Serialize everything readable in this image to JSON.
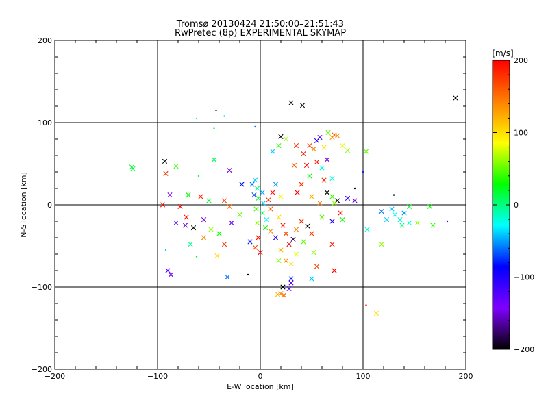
{
  "chart_data": {
    "type": "scatter",
    "title": "Tromsø 20130424 21:50:00–21:51:43",
    "subtitle": "RwPretec (8p) EXPERIMENTAL SKYMAP",
    "xlabel": "E-W location [km]",
    "ylabel": "N-S location [km]",
    "xlim": [
      -200,
      200
    ],
    "ylim": [
      -200,
      200
    ],
    "xticks": [
      -200,
      -100,
      0,
      100,
      200
    ],
    "yticks": [
      -200,
      -100,
      0,
      100,
      200
    ],
    "xtick_labels": [
      "−200",
      "−100",
      "0",
      "100",
      "200"
    ],
    "ytick_labels": [
      "−200",
      "−100",
      "0",
      "100",
      "200"
    ],
    "grid": true,
    "colorbar": {
      "label": "[m/s]",
      "range": [
        -200,
        200
      ],
      "ticks": [
        200,
        100,
        0,
        -100,
        -200
      ],
      "tick_labels": [
        "200",
        "100",
        "0",
        "−100",
        "−200"
      ],
      "colormap": [
        "#000000",
        "#7f00ff",
        "#0000ff",
        "#00ffff",
        "#00ff00",
        "#ffff00",
        "#ff8000",
        "#ff0000"
      ]
    },
    "points": [
      {
        "x": -125,
        "y": 46,
        "v": 20,
        "m": "x"
      },
      {
        "x": -124,
        "y": 44,
        "v": 15,
        "m": "x"
      },
      {
        "x": 190,
        "y": 130,
        "v": -200,
        "m": "x"
      },
      {
        "x": 30,
        "y": 124,
        "v": -200,
        "m": "x"
      },
      {
        "x": 41,
        "y": 121,
        "v": -200,
        "m": "x"
      },
      {
        "x": -43,
        "y": 115,
        "v": -200,
        "m": "."
      },
      {
        "x": 72,
        "y": 85,
        "v": 160,
        "m": "x"
      },
      {
        "x": 75,
        "y": 84,
        "v": 140,
        "m": "x"
      },
      {
        "x": 70,
        "y": 82,
        "v": 130,
        "m": "x"
      },
      {
        "x": 66,
        "y": 88,
        "v": 50,
        "m": "x"
      },
      {
        "x": 58,
        "y": 82,
        "v": -120,
        "m": "x"
      },
      {
        "x": 55,
        "y": 78,
        "v": -100,
        "m": "x"
      },
      {
        "x": 48,
        "y": 72,
        "v": 170,
        "m": "x"
      },
      {
        "x": 52,
        "y": 68,
        "v": 140,
        "m": "x"
      },
      {
        "x": 62,
        "y": 70,
        "v": 100,
        "m": "x"
      },
      {
        "x": 80,
        "y": 72,
        "v": 80,
        "m": "x"
      },
      {
        "x": 85,
        "y": 66,
        "v": 60,
        "m": "x"
      },
      {
        "x": 103,
        "y": 65,
        "v": 50,
        "m": "x"
      },
      {
        "x": 20,
        "y": 83,
        "v": -200,
        "m": "x"
      },
      {
        "x": 25,
        "y": 80,
        "v": 60,
        "m": "x"
      },
      {
        "x": 18,
        "y": 72,
        "v": 40,
        "m": "x"
      },
      {
        "x": 12,
        "y": 65,
        "v": -40,
        "m": "x"
      },
      {
        "x": 35,
        "y": 72,
        "v": 180,
        "m": "x"
      },
      {
        "x": 42,
        "y": 62,
        "v": 190,
        "m": "x"
      },
      {
        "x": 45,
        "y": 48,
        "v": 200,
        "m": "x"
      },
      {
        "x": 33,
        "y": 48,
        "v": 160,
        "m": "x"
      },
      {
        "x": -92,
        "y": 38,
        "v": 180,
        "m": "x"
      },
      {
        "x": -93,
        "y": 53,
        "v": -200,
        "m": "x"
      },
      {
        "x": -82,
        "y": 47,
        "v": 40,
        "m": "x"
      },
      {
        "x": -60,
        "y": 35,
        "v": 20,
        "m": "."
      },
      {
        "x": -45,
        "y": 55,
        "v": 10,
        "m": "x"
      },
      {
        "x": -30,
        "y": 42,
        "v": -150,
        "m": "x"
      },
      {
        "x": -18,
        "y": 25,
        "v": -80,
        "m": "x"
      },
      {
        "x": -88,
        "y": 12,
        "v": -140,
        "m": "x"
      },
      {
        "x": -95,
        "y": 0,
        "v": 190,
        "m": "x"
      },
      {
        "x": -78,
        "y": -2,
        "v": 200,
        "m": "x"
      },
      {
        "x": -70,
        "y": 12,
        "v": 30,
        "m": "x"
      },
      {
        "x": -58,
        "y": 10,
        "v": 180,
        "m": "x"
      },
      {
        "x": -50,
        "y": 5,
        "v": 20,
        "m": "x"
      },
      {
        "x": -35,
        "y": 5,
        "v": 170,
        "m": "x"
      },
      {
        "x": -30,
        "y": -2,
        "v": 150,
        "m": "x"
      },
      {
        "x": -72,
        "y": -15,
        "v": 190,
        "m": "x"
      },
      {
        "x": -82,
        "y": -22,
        "v": -120,
        "m": "x"
      },
      {
        "x": -73,
        "y": -25,
        "v": -150,
        "m": "x"
      },
      {
        "x": -65,
        "y": -28,
        "v": -200,
        "m": "x"
      },
      {
        "x": -55,
        "y": -18,
        "v": -150,
        "m": "x"
      },
      {
        "x": -48,
        "y": -30,
        "v": 60,
        "m": "x"
      },
      {
        "x": -40,
        "y": -35,
        "v": 30,
        "m": "x"
      },
      {
        "x": -28,
        "y": -22,
        "v": -130,
        "m": "x"
      },
      {
        "x": -20,
        "y": -12,
        "v": 50,
        "m": "x"
      },
      {
        "x": -68,
        "y": -48,
        "v": 0,
        "m": "x"
      },
      {
        "x": -55,
        "y": -40,
        "v": 140,
        "m": "x"
      },
      {
        "x": -42,
        "y": -62,
        "v": 100,
        "m": "x"
      },
      {
        "x": -35,
        "y": -48,
        "v": 180,
        "m": "x"
      },
      {
        "x": -90,
        "y": -80,
        "v": -130,
        "m": "x"
      },
      {
        "x": -87,
        "y": -85,
        "v": -130,
        "m": "x"
      },
      {
        "x": -32,
        "y": -88,
        "v": -60,
        "m": "x"
      },
      {
        "x": -10,
        "y": -45,
        "v": -80,
        "m": "x"
      },
      {
        "x": -5,
        "y": -52,
        "v": 170,
        "m": "x"
      },
      {
        "x": 0,
        "y": -58,
        "v": 200,
        "m": "x"
      },
      {
        "x": -2,
        "y": -40,
        "v": 190,
        "m": "x"
      },
      {
        "x": -5,
        "y": 30,
        "v": -40,
        "m": "x"
      },
      {
        "x": -8,
        "y": 25,
        "v": -60,
        "m": "x"
      },
      {
        "x": -3,
        "y": 20,
        "v": 0,
        "m": "x"
      },
      {
        "x": -6,
        "y": 12,
        "v": -70,
        "m": "x"
      },
      {
        "x": 2,
        "y": 15,
        "v": -50,
        "m": "x"
      },
      {
        "x": -2,
        "y": 8,
        "v": 20,
        "m": "x"
      },
      {
        "x": 3,
        "y": 2,
        "v": -40,
        "m": "x"
      },
      {
        "x": -4,
        "y": -5,
        "v": 40,
        "m": "x"
      },
      {
        "x": 2,
        "y": -10,
        "v": 10,
        "m": "x"
      },
      {
        "x": 6,
        "y": -18,
        "v": -30,
        "m": "x"
      },
      {
        "x": -3,
        "y": -22,
        "v": 60,
        "m": "x"
      },
      {
        "x": 5,
        "y": -28,
        "v": 30,
        "m": "x"
      },
      {
        "x": 8,
        "y": 6,
        "v": 180,
        "m": "x"
      },
      {
        "x": 10,
        "y": -5,
        "v": 160,
        "m": "x"
      },
      {
        "x": 12,
        "y": 15,
        "v": 190,
        "m": "x"
      },
      {
        "x": 15,
        "y": 25,
        "v": -50,
        "m": "x"
      },
      {
        "x": 20,
        "y": 10,
        "v": 80,
        "m": "x"
      },
      {
        "x": 18,
        "y": -15,
        "v": 100,
        "m": "x"
      },
      {
        "x": 22,
        "y": -25,
        "v": 190,
        "m": "x"
      },
      {
        "x": 25,
        "y": -35,
        "v": 170,
        "m": "x"
      },
      {
        "x": 15,
        "y": -40,
        "v": -100,
        "m": "x"
      },
      {
        "x": 10,
        "y": -32,
        "v": 140,
        "m": "x"
      },
      {
        "x": 28,
        "y": -48,
        "v": 200,
        "m": "x"
      },
      {
        "x": 20,
        "y": -55,
        "v": 120,
        "m": "x"
      },
      {
        "x": 32,
        "y": -42,
        "v": -180,
        "m": "x"
      },
      {
        "x": 35,
        "y": -30,
        "v": 140,
        "m": "x"
      },
      {
        "x": 40,
        "y": -20,
        "v": 180,
        "m": "x"
      },
      {
        "x": 46,
        "y": -26,
        "v": -200,
        "m": "x"
      },
      {
        "x": 50,
        "y": -35,
        "v": 170,
        "m": "x"
      },
      {
        "x": 42,
        "y": -45,
        "v": 50,
        "m": "x"
      },
      {
        "x": 35,
        "y": -60,
        "v": 80,
        "m": "x"
      },
      {
        "x": 25,
        "y": -68,
        "v": 140,
        "m": "x"
      },
      {
        "x": 18,
        "y": -68,
        "v": 60,
        "m": "x"
      },
      {
        "x": 30,
        "y": -72,
        "v": 100,
        "m": "x"
      },
      {
        "x": 55,
        "y": -75,
        "v": 170,
        "m": "x"
      },
      {
        "x": 72,
        "y": -80,
        "v": 200,
        "m": "x"
      },
      {
        "x": 70,
        "y": -48,
        "v": 190,
        "m": "x"
      },
      {
        "x": 52,
        "y": -58,
        "v": 60,
        "m": "x"
      },
      {
        "x": 30,
        "y": -90,
        "v": -80,
        "m": "x"
      },
      {
        "x": 50,
        "y": -90,
        "v": -40,
        "m": "x"
      },
      {
        "x": 30,
        "y": -95,
        "v": -150,
        "m": "x"
      },
      {
        "x": 22,
        "y": -100,
        "v": -200,
        "m": "x"
      },
      {
        "x": 28,
        "y": -102,
        "v": -120,
        "m": "x"
      },
      {
        "x": 20,
        "y": -108,
        "v": 140,
        "m": "x"
      },
      {
        "x": 23,
        "y": -110,
        "v": 150,
        "m": "x"
      },
      {
        "x": 17,
        "y": -109,
        "v": 120,
        "m": "x"
      },
      {
        "x": 113,
        "y": -132,
        "v": 100,
        "m": "x"
      },
      {
        "x": 118,
        "y": -48,
        "v": 60,
        "m": "x"
      },
      {
        "x": 104,
        "y": -30,
        "v": -20,
        "m": "x"
      },
      {
        "x": 100,
        "y": 40,
        "v": -80,
        "m": "."
      },
      {
        "x": 92,
        "y": 20,
        "v": -200,
        "m": "."
      },
      {
        "x": 92,
        "y": 5,
        "v": -150,
        "m": "x"
      },
      {
        "x": 85,
        "y": 8,
        "v": -100,
        "m": "x"
      },
      {
        "x": 75,
        "y": 5,
        "v": -200,
        "m": "x"
      },
      {
        "x": 70,
        "y": 10,
        "v": 40,
        "m": "x"
      },
      {
        "x": 65,
        "y": 15,
        "v": -200,
        "m": "x"
      },
      {
        "x": 72,
        "y": 2,
        "v": 60,
        "m": "x"
      },
      {
        "x": 78,
        "y": -10,
        "v": 190,
        "m": "x"
      },
      {
        "x": 70,
        "y": -20,
        "v": -100,
        "m": "x"
      },
      {
        "x": 80,
        "y": -18,
        "v": 30,
        "m": "x"
      },
      {
        "x": 62,
        "y": 30,
        "v": 180,
        "m": "x"
      },
      {
        "x": 70,
        "y": 32,
        "v": -20,
        "m": "x"
      },
      {
        "x": 60,
        "y": 45,
        "v": -20,
        "m": "x"
      },
      {
        "x": 65,
        "y": 55,
        "v": -150,
        "m": "x"
      },
      {
        "x": 55,
        "y": 52,
        "v": 190,
        "m": "x"
      },
      {
        "x": 48,
        "y": 35,
        "v": 30,
        "m": "x"
      },
      {
        "x": 40,
        "y": 25,
        "v": 180,
        "m": "x"
      },
      {
        "x": 36,
        "y": 15,
        "v": 200,
        "m": "x"
      },
      {
        "x": 50,
        "y": 10,
        "v": 120,
        "m": "x"
      },
      {
        "x": 58,
        "y": 2,
        "v": 150,
        "m": "x"
      },
      {
        "x": 60,
        "y": -15,
        "v": 50,
        "m": "x"
      },
      {
        "x": 128,
        "y": -5,
        "v": -40,
        "m": "x"
      },
      {
        "x": 131,
        "y": -12,
        "v": -30,
        "m": "x"
      },
      {
        "x": 136,
        "y": -18,
        "v": -20,
        "m": "x"
      },
      {
        "x": 140,
        "y": -10,
        "v": -50,
        "m": "x"
      },
      {
        "x": 145,
        "y": -2,
        "v": 20,
        "m": "x"
      },
      {
        "x": 145,
        "y": -22,
        "v": -20,
        "m": "x"
      },
      {
        "x": 123,
        "y": -18,
        "v": -40,
        "m": "x"
      },
      {
        "x": 118,
        "y": -8,
        "v": -60,
        "m": "x"
      },
      {
        "x": 138,
        "y": -25,
        "v": 0,
        "m": "x"
      },
      {
        "x": 153,
        "y": -22,
        "v": 60,
        "m": "x"
      },
      {
        "x": 165,
        "y": -2,
        "v": 30,
        "m": "x"
      },
      {
        "x": 168,
        "y": -25,
        "v": 40,
        "m": "x"
      },
      {
        "x": 182,
        "y": -20,
        "v": -90,
        "m": "."
      },
      {
        "x": 130,
        "y": 12,
        "v": -200,
        "m": "."
      },
      {
        "x": -62,
        "y": 105,
        "v": -30,
        "m": "."
      },
      {
        "x": -35,
        "y": 108,
        "v": -40,
        "m": "."
      },
      {
        "x": -45,
        "y": 93,
        "v": 20,
        "m": "."
      },
      {
        "x": -5,
        "y": 95,
        "v": -60,
        "m": "."
      },
      {
        "x": 103,
        "y": -122,
        "v": 200,
        "m": "."
      },
      {
        "x": -92,
        "y": -55,
        "v": -40,
        "m": "."
      },
      {
        "x": -62,
        "y": -63,
        "v": 30,
        "m": "."
      },
      {
        "x": -12,
        "y": -85,
        "v": -200,
        "m": "."
      }
    ]
  }
}
